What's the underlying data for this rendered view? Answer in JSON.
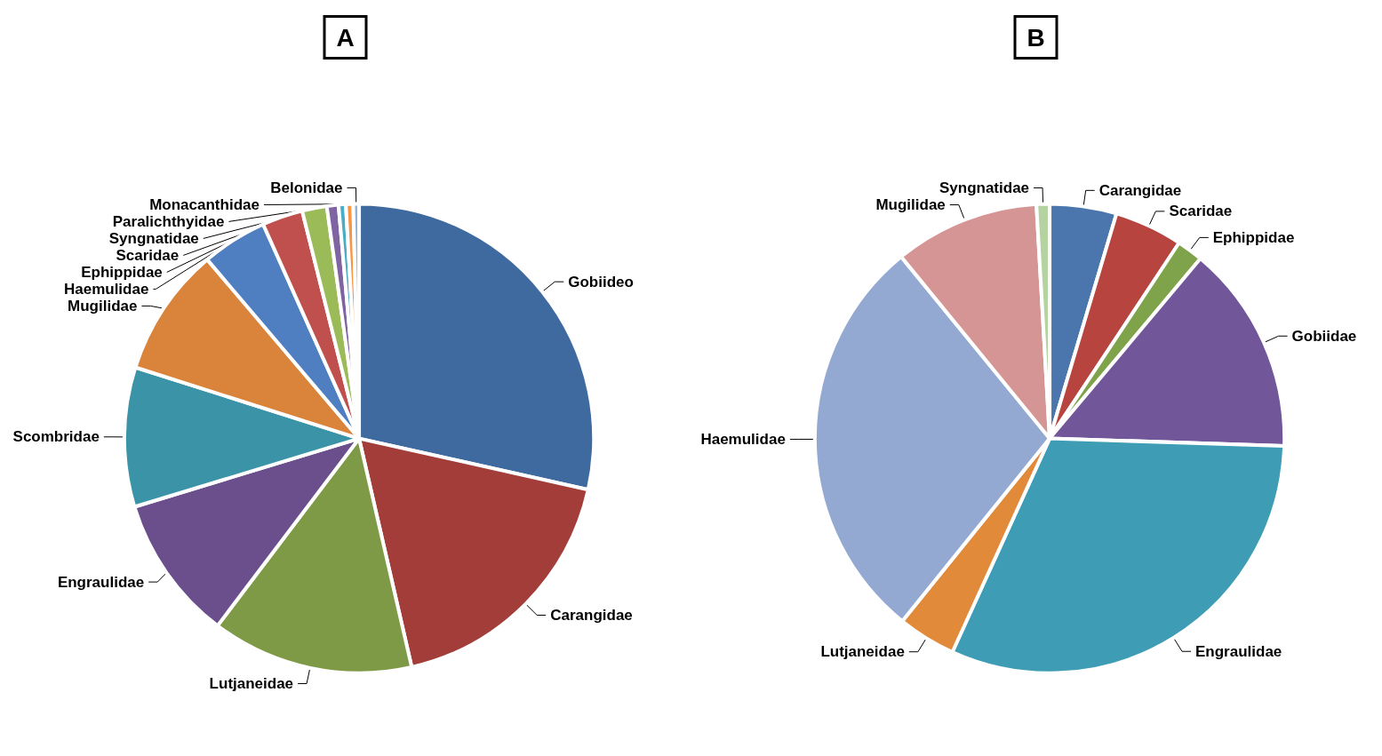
{
  "chart_data": [
    {
      "type": "pie",
      "title": "A",
      "categories": [
        "Gobiideo",
        "Carangidae",
        "Lutjaneidae",
        "Engraulidae",
        "Scombridae",
        "Mugilidae",
        "Haemulidae",
        "Ephippidae",
        "Scaridae",
        "Syngnatidae",
        "Paralichthyidae",
        "Monacanthidae",
        "Belonidae"
      ],
      "values": [
        28.5,
        17.9,
        13.9,
        10,
        9.6,
        8.9,
        4.5,
        2.8,
        1.7,
        0.8,
        0.5,
        0.5,
        0.4
      ],
      "colors": [
        "#3f6aa0",
        "#a33d3a",
        "#7f9a47",
        "#6a4f8c",
        "#3b93a8",
        "#d9843a",
        "#4f7fc0",
        "#c0504d",
        "#9bbb59",
        "#8064a2",
        "#4bacc6",
        "#f79646",
        "#95b3d7"
      ]
    },
    {
      "type": "pie",
      "title": "B",
      "categories": [
        "Carangidae",
        "Scaridae",
        "Ephippidae",
        "Gobiidae",
        "Engraulidae",
        "Lutjaneidae",
        "Haemulidae",
        "Mugilidae",
        "Syngnatidae"
      ],
      "values": [
        4.6,
        4.7,
        1.8,
        14.4,
        31.3,
        4,
        28.3,
        10,
        0.9
      ],
      "colors": [
        "#4a76ad",
        "#b84440",
        "#7fa34a",
        "#71569a",
        "#3e9db4",
        "#e08a3a",
        "#93a9d2",
        "#d49594",
        "#b5d3a0"
      ]
    }
  ]
}
